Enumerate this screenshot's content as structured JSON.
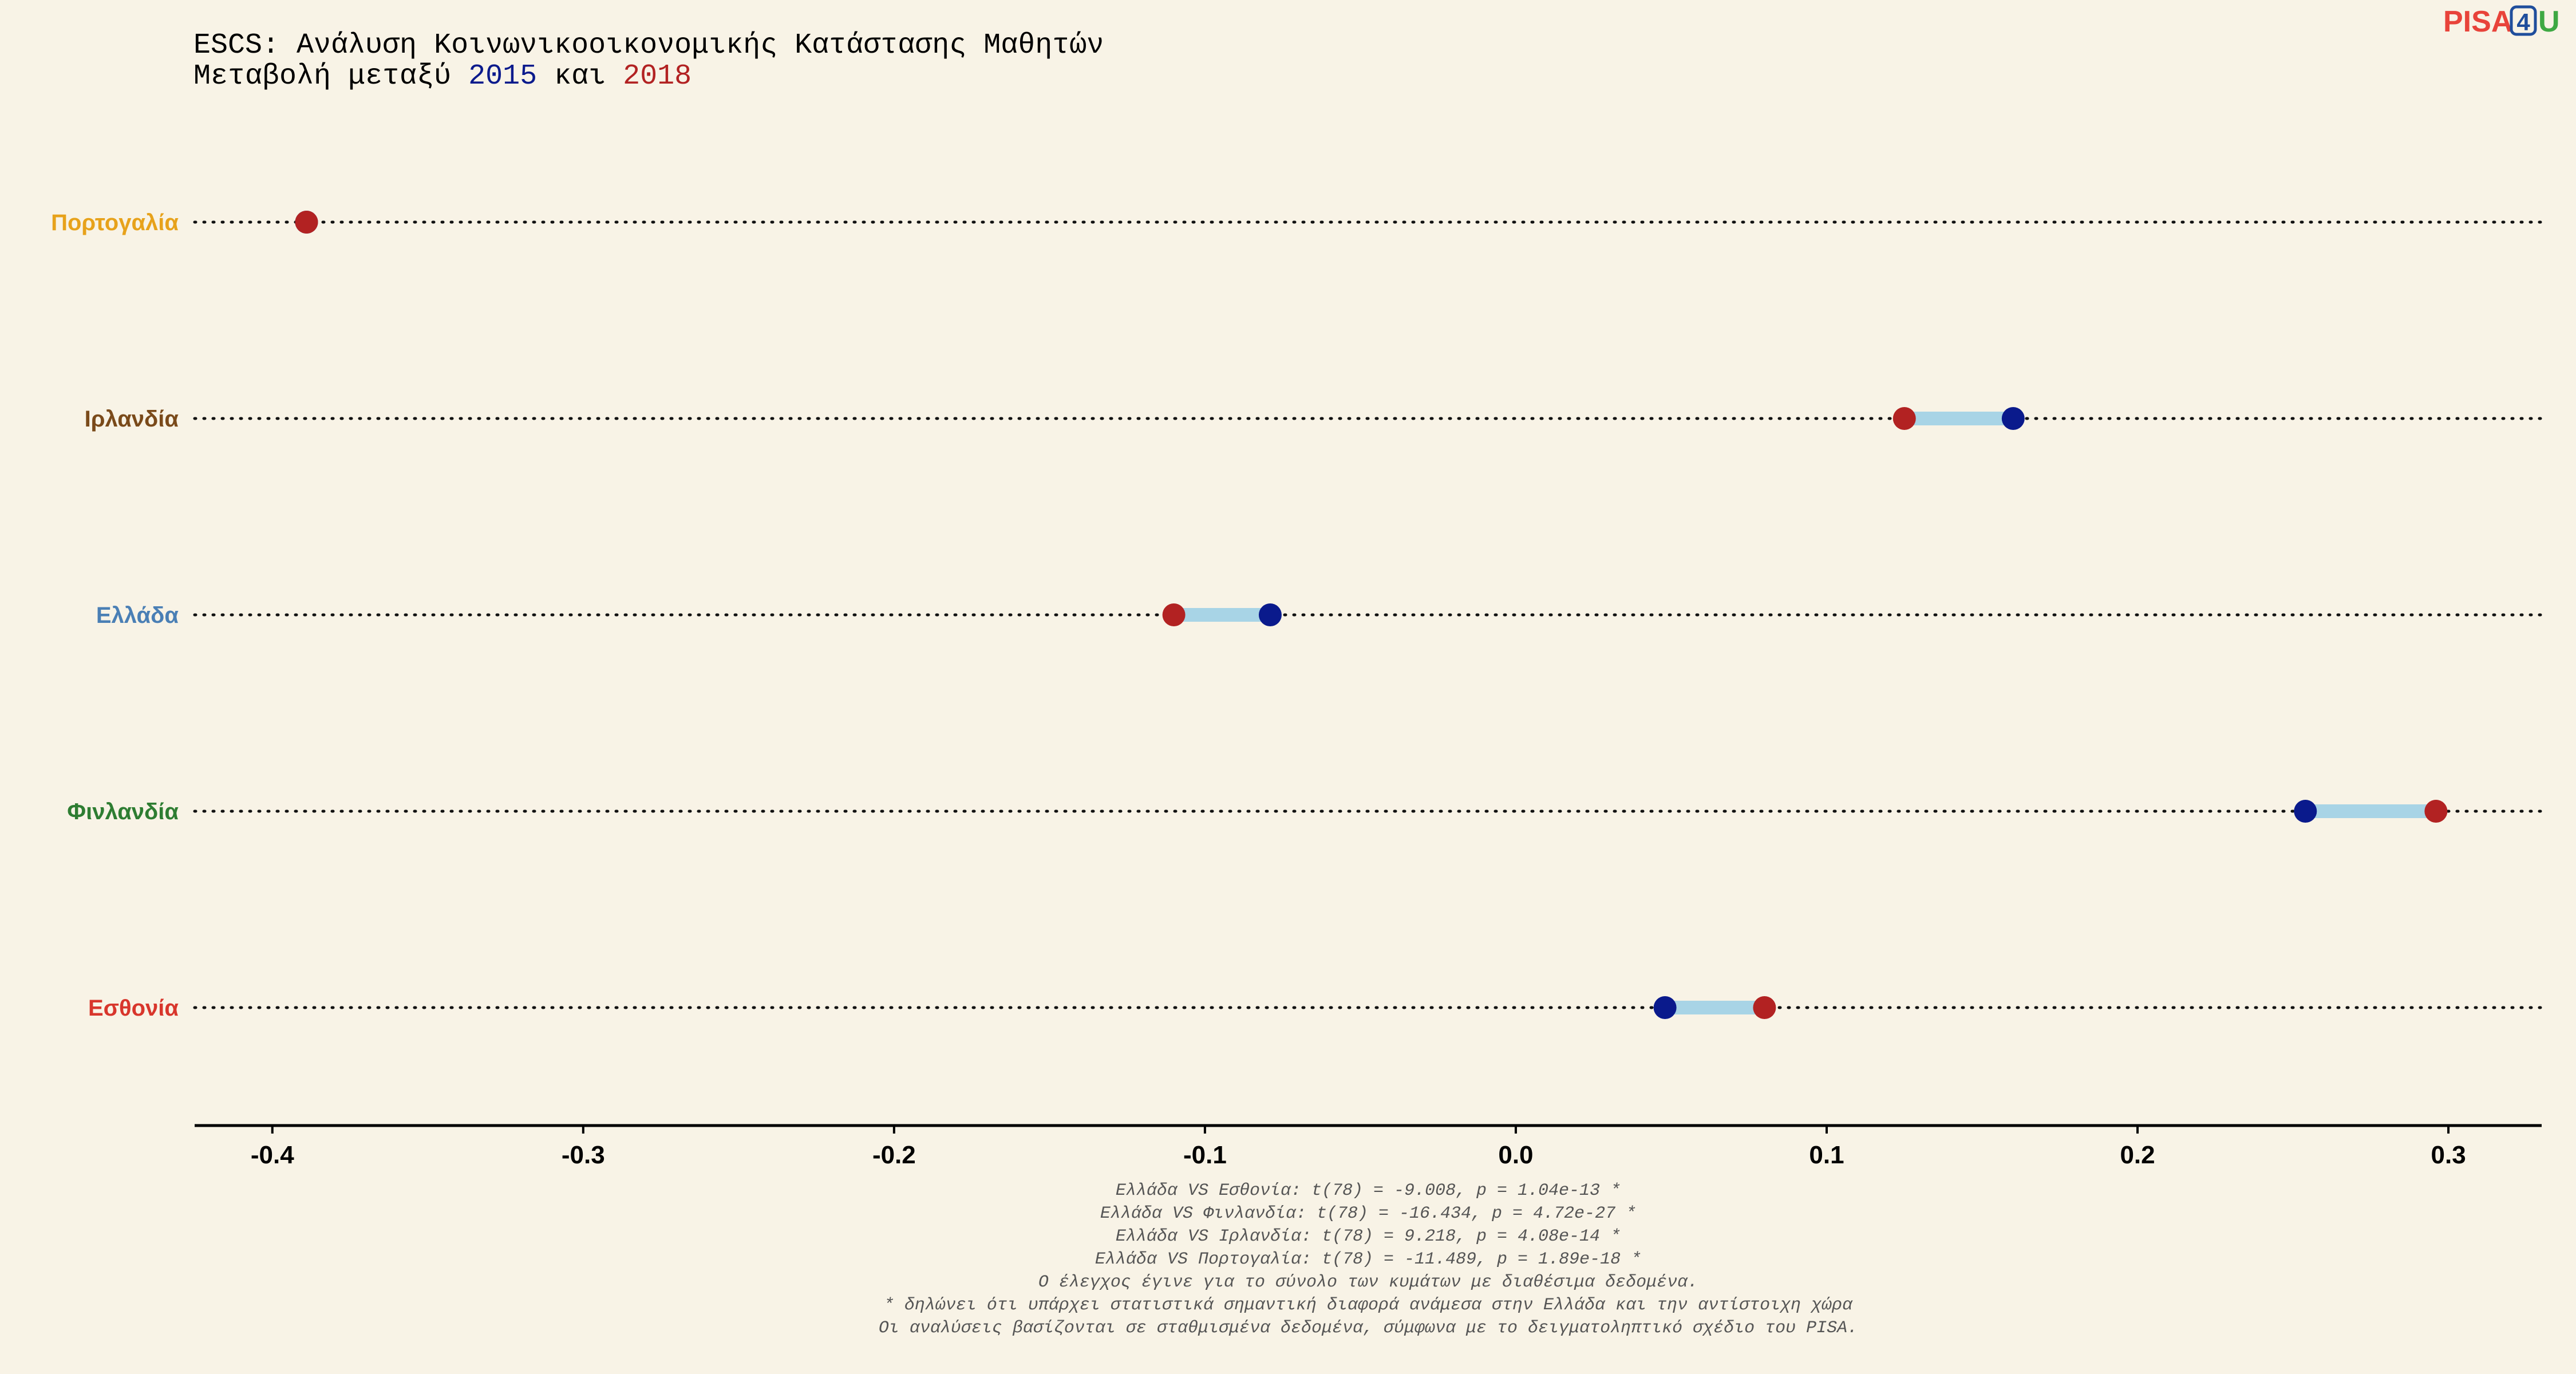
{
  "header": {
    "title": "ESCS: Ανάλυση Κοινωνικοοικονομικής Κατάστασης Μαθητών",
    "subtitle_prefix": "Μεταβολή μεταξύ ",
    "subtitle_year1": "2015",
    "subtitle_mid": " και ",
    "subtitle_year2": "2018"
  },
  "logo": {
    "part1": "PISA",
    "part2": "4",
    "part3": "U",
    "colors": {
      "part1": "#e8433a",
      "part2": "#1f4e9c",
      "part3": "#3ea843"
    }
  },
  "colors": {
    "year_2015": "#0a1a8c",
    "year_2018": "#b22222",
    "connector": "#a8d4e6",
    "guide": "#111111",
    "axis": "#000000"
  },
  "chart_data": {
    "type": "dumbbell",
    "xlim": [
      -0.425,
      0.33
    ],
    "xticks": [
      -0.4,
      -0.3,
      -0.2,
      -0.1,
      0.0,
      0.1,
      0.2,
      0.3
    ],
    "xtick_labels": [
      "-0.4",
      "-0.3",
      "-0.2",
      "-0.1",
      "0.0",
      "0.1",
      "0.2",
      "0.3"
    ],
    "series_names": [
      "2015",
      "2018"
    ],
    "countries": [
      {
        "name": "Πορτογαλία",
        "color": "#e7a21b",
        "v2015": -0.389,
        "v2018": -0.389
      },
      {
        "name": "Ιρλανδία",
        "color": "#7a4a1a",
        "v2015": 0.16,
        "v2018": 0.125
      },
      {
        "name": "Ελλάδα",
        "color": "#4a7fb5",
        "v2015": -0.079,
        "v2018": -0.11
      },
      {
        "name": "Φινλανδία",
        "color": "#2e7d32",
        "v2015": 0.254,
        "v2018": 0.296
      },
      {
        "name": "Εσθονία",
        "color": "#d8362c",
        "v2015": 0.048,
        "v2018": 0.08
      }
    ]
  },
  "caption": [
    "Ελλάδα VS Εσθονία: t(78) = -9.008, p = 1.04e-13 *",
    "Ελλάδα VS Φινλανδία: t(78) = -16.434, p = 4.72e-27 *",
    "Ελλάδα VS Ιρλανδία: t(78) = 9.218, p = 4.08e-14 *",
    "Ελλάδα VS Πορτογαλία: t(78) = -11.489, p = 1.89e-18 *",
    "Ο έλεγχος έγινε για το σύνολο των κυμάτων με διαθέσιμα δεδομένα.",
    "* δηλώνει ότι υπάρχει στατιστικά σημαντική διαφορά ανάμεσα στην Ελλάδα και την αντίστοιχη χώρα",
    "Οι αναλύσεις βασίζονται σε σταθμισμένα δεδομένα, σύμφωνα με το δειγματοληπτικό σχέδιο του PISA."
  ]
}
